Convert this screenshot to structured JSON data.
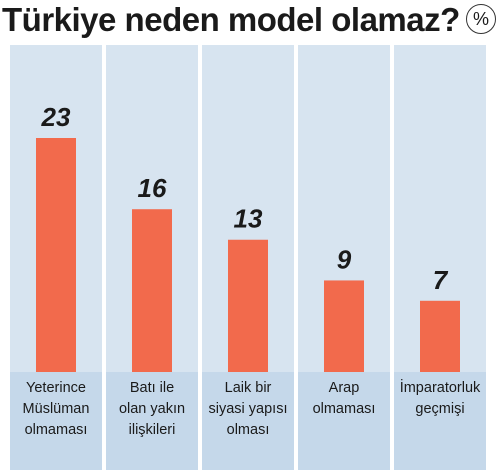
{
  "title": "Türkiye neden model olamaz?",
  "unit": "%",
  "colors": {
    "bar": "#f26a4c",
    "panel": "#d7e4f0",
    "label_band": "#c5d8ea"
  },
  "chart_data": {
    "type": "bar",
    "title": "Türkiye neden model olamaz?",
    "unit": "%",
    "categories": [
      [
        "Yeterince",
        "Müslüman",
        "olmaması"
      ],
      [
        "Batı ile",
        "olan yakın",
        "ilişkileri"
      ],
      [
        "Laik bir",
        "siyasi yapısı",
        "olması"
      ],
      [
        "Arap",
        "olmaması"
      ],
      [
        "İmparatorluk",
        "geçmişi"
      ]
    ],
    "values": [
      23,
      16,
      13,
      9,
      7
    ],
    "ylim": [
      0,
      23
    ]
  }
}
